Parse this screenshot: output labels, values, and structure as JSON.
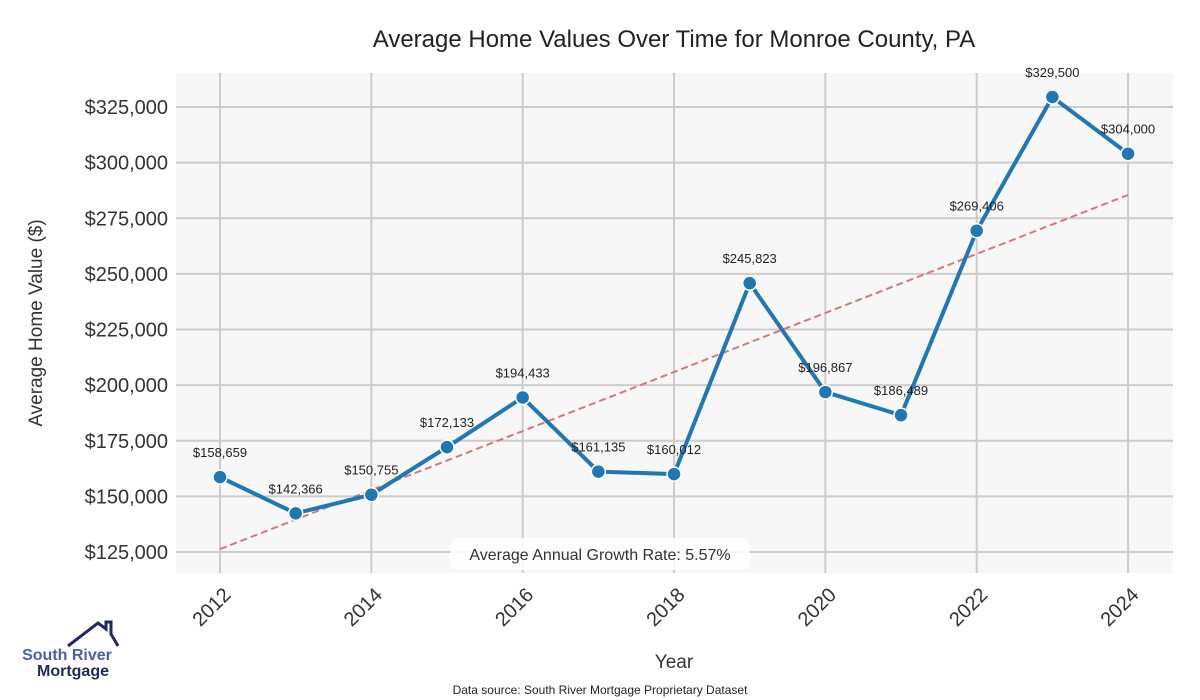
{
  "chart_data": {
    "type": "line",
    "title": "Average Home Values Over Time for Monroe County, PA",
    "xlabel": "Year",
    "ylabel": "Average Home Value ($)",
    "x": [
      2012,
      2013,
      2014,
      2015,
      2016,
      2017,
      2018,
      2019,
      2020,
      2021,
      2022,
      2023,
      2024
    ],
    "values": [
      158659,
      142366,
      150755,
      172133,
      194433,
      161135,
      160012,
      245823,
      196867,
      186489,
      269406,
      329500,
      304000
    ],
    "point_labels": [
      "$158,659",
      "$142,366",
      "$150,755",
      "$172,133",
      "$194,433",
      "$161,135",
      "$160,012",
      "$245,823",
      "$196,867",
      "$186,489",
      "$269,406",
      "$329,500",
      "$304,000"
    ],
    "trend": {
      "x": [
        2012,
        2024
      ],
      "y": [
        126300,
        285500
      ],
      "style": "dashed"
    },
    "xticks": [
      "2012",
      "2014",
      "2016",
      "2018",
      "2020",
      "2022",
      "2024"
    ],
    "yticks": [
      125000,
      150000,
      175000,
      200000,
      225000,
      250000,
      275000,
      300000,
      325000
    ],
    "ytick_labels": [
      "$125,000",
      "$150,000",
      "$175,000",
      "$200,000",
      "$225,000",
      "$250,000",
      "$275,000",
      "$300,000",
      "$325,000"
    ],
    "ylim": [
      116000,
      338000
    ],
    "xlim": [
      2011.42,
      2024.6
    ],
    "grid": true,
    "annotation": "Average Annual Growth Rate: 5.57%",
    "colors": {
      "line": "#1f77b4",
      "trend": "#d9777a",
      "bg": "#f7f7f7",
      "grid": "#cccccc"
    }
  },
  "footer": {
    "source": "Data source: South River Mortgage Proprietary Dataset"
  },
  "logo": {
    "line1": "South River",
    "line2": "Mortgage"
  }
}
